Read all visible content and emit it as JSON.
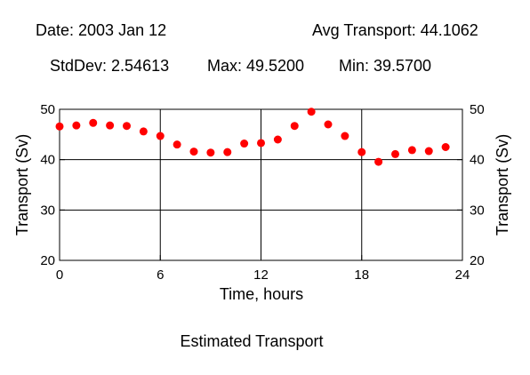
{
  "header": {
    "date": "Date: 2003 Jan 12",
    "avg": "Avg Transport: 44.1062",
    "stddev": "StdDev: 2.54613",
    "max": "Max: 49.5200",
    "min": "Min: 39.5700"
  },
  "caption": "Estimated Transport",
  "chart_data": {
    "type": "scatter",
    "xlabel": "Time, hours",
    "ylabel": "Transport (Sv)",
    "xlim": [
      0,
      24
    ],
    "ylim": [
      20,
      50
    ],
    "xticks": [
      "0",
      "6",
      "12",
      "18",
      "24"
    ],
    "yticks": [
      "20",
      "30",
      "40",
      "50"
    ],
    "grid": true,
    "marker_color": "#ff0000",
    "x": [
      0,
      1,
      2,
      3,
      4,
      5,
      6,
      7,
      8,
      9,
      10,
      11,
      12,
      13,
      14,
      15,
      16,
      17,
      18,
      19,
      20,
      21,
      22,
      23
    ],
    "y": [
      46.6,
      46.8,
      47.3,
      46.8,
      46.7,
      45.6,
      44.7,
      43.0,
      41.6,
      41.4,
      41.5,
      43.2,
      43.3,
      44.0,
      46.7,
      49.52,
      47.0,
      44.7,
      41.5,
      39.57,
      41.1,
      41.9,
      41.7,
      42.5
    ]
  }
}
